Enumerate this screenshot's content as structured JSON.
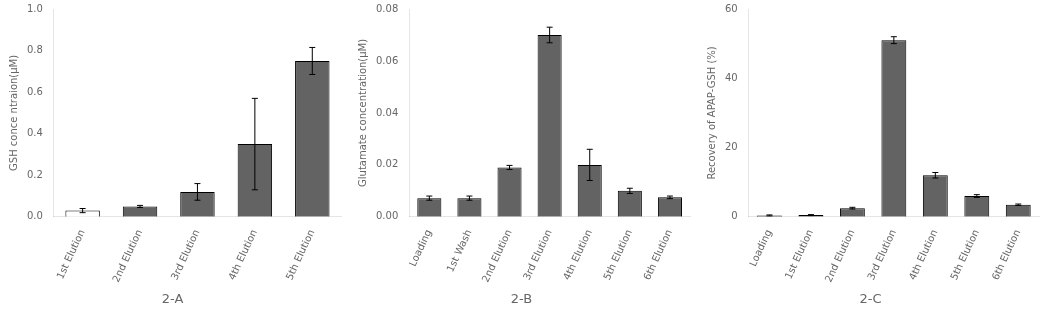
{
  "chart_data": [
    {
      "type": "bar",
      "title": "2-A",
      "categories": [
        "1st Elution",
        "2nd Elution",
        "3rd Elution",
        "4th Elution",
        "5th Elution"
      ],
      "values": [
        0.03,
        0.05,
        0.12,
        0.35,
        0.75
      ],
      "errors": [
        0.01,
        0.005,
        0.04,
        0.22,
        0.065
      ],
      "colors": [
        "white",
        "#636363",
        "#636363",
        "#636363",
        "#636363"
      ],
      "ylabel": "GSH conce ntraion(μM)",
      "ylim": [
        0,
        1.0
      ],
      "yticks": [
        {
          "value": 0.0,
          "label": "0.0"
        },
        0.2,
        0.4,
        0.6,
        0.8,
        {
          "value": 1.0,
          "label": "1.0"
        }
      ],
      "grid": false
    },
    {
      "type": "bar",
      "title": "2-B",
      "categories": [
        "Loading",
        "1st Wash",
        "2nd Elution",
        "3rd Elution",
        "4th Elution",
        "5th Elution",
        "6th Elution"
      ],
      "values": [
        0.0072,
        0.0072,
        0.019,
        0.07,
        0.02,
        0.01,
        0.0075
      ],
      "errors": [
        0.0008,
        0.0008,
        0.0008,
        0.003,
        0.006,
        0.001,
        0.0005
      ],
      "colors": [
        "#636363",
        "#636363",
        "#636363",
        "#636363",
        "#636363",
        "#636363",
        "#636363"
      ],
      "ylabel": "Glutamate concentration(μM)",
      "ylim": [
        0,
        0.08
      ],
      "yticks": [
        {
          "value": 0.0,
          "label": "0.00"
        },
        0.02,
        0.04,
        0.06,
        0.08
      ],
      "grid": false
    },
    {
      "type": "bar",
      "title": "2-C",
      "categories": [
        "Loading",
        "1st Elution",
        "2nd Elution",
        "3rd Elution",
        "4th Elution",
        "5th Elution",
        "6th Elution"
      ],
      "values": [
        0.4,
        0.5,
        2.5,
        51.0,
        12.0,
        6.0,
        3.5
      ],
      "errors": [
        0.15,
        0.15,
        0.25,
        1.0,
        0.8,
        0.4,
        0.2
      ],
      "colors": [
        "#636363",
        "#636363",
        "#636363",
        "#636363",
        "#636363",
        "#636363",
        "#636363"
      ],
      "ylabel": "Recovery of APAP-GSH (%)",
      "ylim": [
        0,
        60
      ],
      "yticks": [
        0,
        20,
        40,
        60
      ],
      "grid": false
    }
  ]
}
